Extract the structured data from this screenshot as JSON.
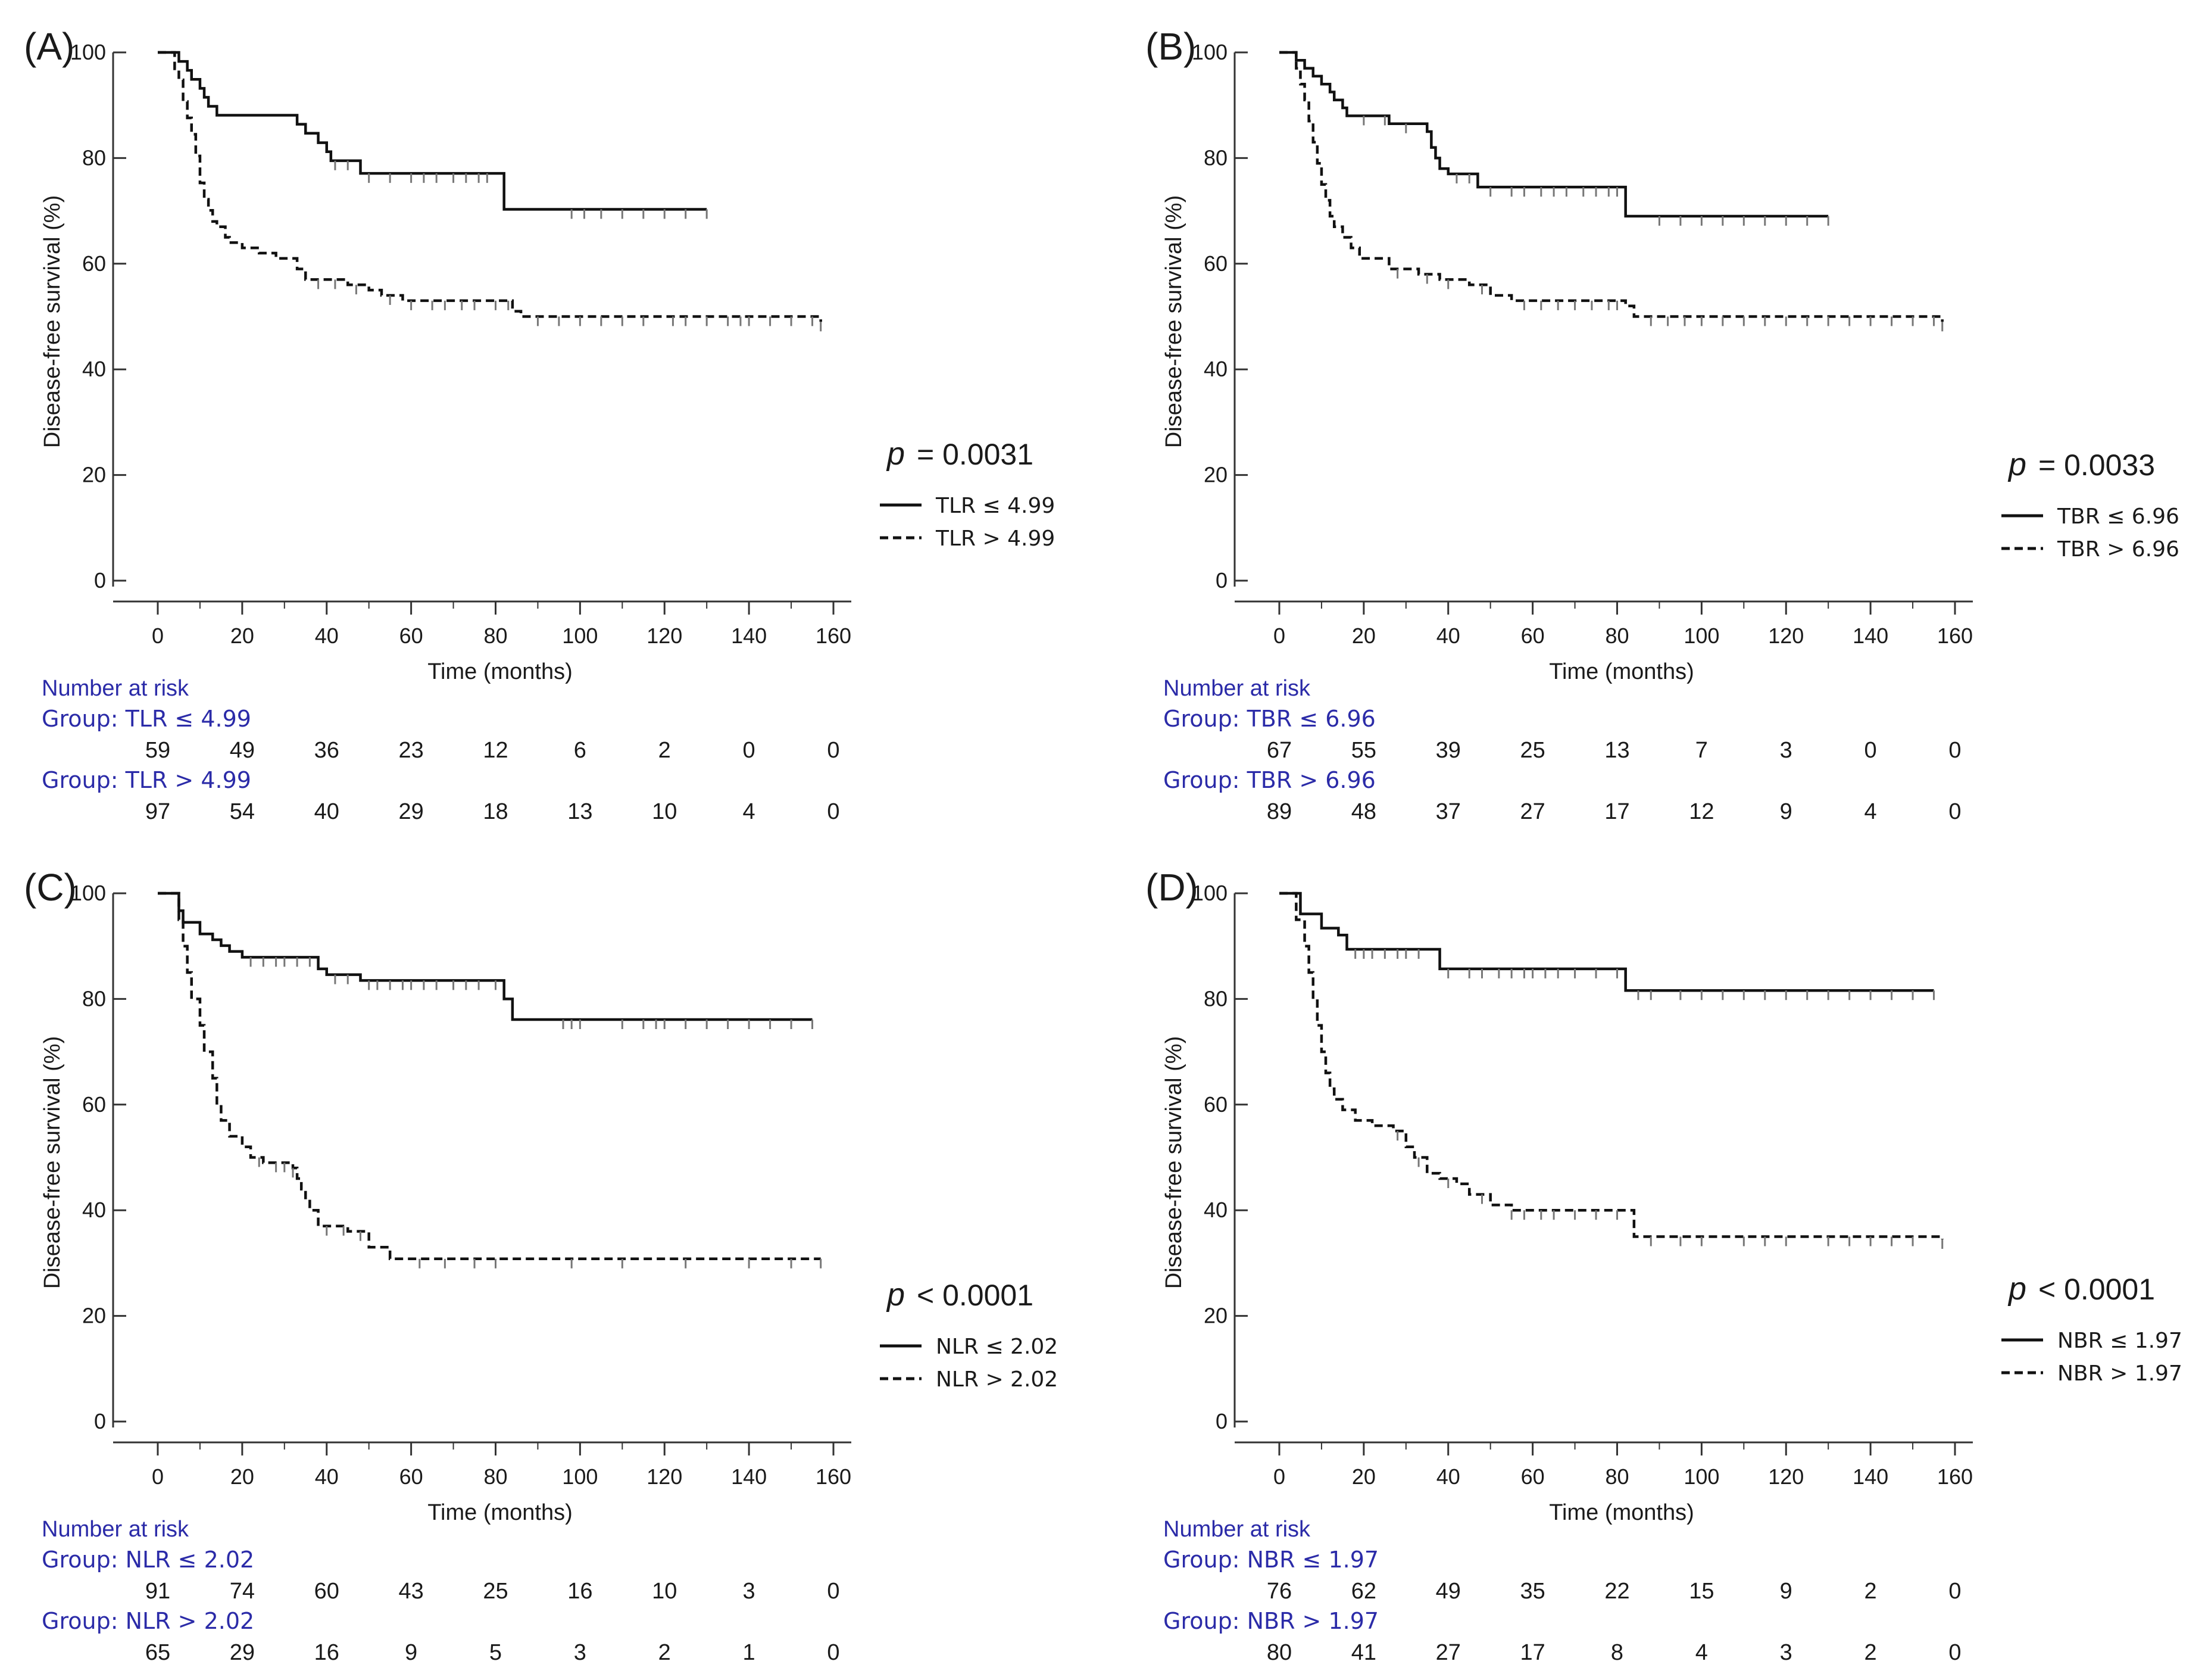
{
  "chart_data": [
    {
      "type": "line",
      "panel_label": "(A)",
      "ylabel": "Disease-free survival (%)",
      "xlabel": "Time (months)",
      "xlim": [
        0,
        160
      ],
      "ylim": [
        0,
        100
      ],
      "xticks": [
        "0",
        "20",
        "40",
        "60",
        "80",
        "100",
        "120",
        "140",
        "160"
      ],
      "yticks": [
        "0",
        "20",
        "40",
        "60",
        "80",
        "100"
      ],
      "p_symbol": "p",
      "p_text": "= 0.0031",
      "series": [
        {
          "name": "TLR ≤ 4.99",
          "style": "solid",
          "steps": [
            [
              0,
              100
            ],
            [
              5,
              98.3
            ],
            [
              7,
              96.6
            ],
            [
              8,
              94.9
            ],
            [
              10,
              93.2
            ],
            [
              11,
              91.5
            ],
            [
              12,
              89.8
            ],
            [
              14,
              88.1
            ],
            [
              33,
              86.4
            ],
            [
              35,
              84.7
            ],
            [
              38,
              82.9
            ],
            [
              40,
              81.2
            ],
            [
              41,
              79.5
            ],
            [
              48,
              77.1
            ],
            [
              82,
              70.3
            ],
            [
              130,
              70.3
            ]
          ],
          "censor": [
            42,
            45,
            50,
            55,
            60,
            63,
            66,
            70,
            73,
            76,
            78,
            98,
            101,
            105,
            110,
            115,
            120,
            125,
            130
          ]
        },
        {
          "name": "TLR > 4.99",
          "style": "dashed",
          "steps": [
            [
              0,
              100
            ],
            [
              4,
              96.9
            ],
            [
              5,
              94.8
            ],
            [
              6,
              90.7
            ],
            [
              7,
              87.6
            ],
            [
              8,
              84.5
            ],
            [
              9,
              80.4
            ],
            [
              10,
              75.3
            ],
            [
              11,
              72.2
            ],
            [
              12,
              70.1
            ],
            [
              13,
              68
            ],
            [
              14,
              67
            ],
            [
              16,
              65
            ],
            [
              17,
              64
            ],
            [
              20,
              63
            ],
            [
              24,
              62
            ],
            [
              28,
              61
            ],
            [
              33,
              59
            ],
            [
              35,
              57
            ],
            [
              45,
              56
            ],
            [
              50,
              55
            ],
            [
              53,
              54
            ],
            [
              58,
              53
            ],
            [
              84,
              51
            ],
            [
              86,
              50
            ],
            [
              157,
              49
            ]
          ],
          "censor": [
            38,
            42,
            47,
            55,
            60,
            65,
            68,
            72,
            75,
            80,
            83,
            90,
            95,
            100,
            105,
            110,
            115,
            122,
            125,
            130,
            135,
            138,
            140,
            145,
            150,
            155,
            157
          ]
        }
      ],
      "legend": [
        "TLR ≤ 4.99",
        "TLR > 4.99"
      ],
      "risk_table": {
        "title": "Number at risk",
        "groups": [
          {
            "label": "Group: TLR ≤ 4.99",
            "counts": [
              "59",
              "49",
              "36",
              "23",
              "12",
              "6",
              "2",
              "0",
              "0"
            ]
          },
          {
            "label": "Group: TLR > 4.99",
            "counts": [
              "97",
              "54",
              "40",
              "29",
              "18",
              "13",
              "10",
              "4",
              "0"
            ]
          }
        ]
      }
    },
    {
      "type": "line",
      "panel_label": "(B)",
      "ylabel": "Disease-free survival (%)",
      "xlabel": "Time (months)",
      "xlim": [
        0,
        160
      ],
      "ylim": [
        0,
        100
      ],
      "xticks": [
        "0",
        "20",
        "40",
        "60",
        "80",
        "100",
        "120",
        "140",
        "160"
      ],
      "yticks": [
        "0",
        "20",
        "40",
        "60",
        "80",
        "100"
      ],
      "p_symbol": "p",
      "p_text": "= 0.0033",
      "series": [
        {
          "name": "TBR ≤ 6.96",
          "style": "solid",
          "steps": [
            [
              0,
              100
            ],
            [
              4,
              98.5
            ],
            [
              6,
              97
            ],
            [
              8,
              95.5
            ],
            [
              10,
              94
            ],
            [
              12,
              92.5
            ],
            [
              13,
              91
            ],
            [
              15,
              89.5
            ],
            [
              16,
              88
            ],
            [
              26,
              86.5
            ],
            [
              35,
              85
            ],
            [
              36,
              82
            ],
            [
              37,
              80
            ],
            [
              38,
              78
            ],
            [
              40,
              77
            ],
            [
              47,
              74.5
            ],
            [
              82,
              69
            ],
            [
              130,
              69
            ]
          ],
          "censor": [
            20,
            25,
            30,
            42,
            45,
            50,
            55,
            58,
            62,
            65,
            68,
            72,
            75,
            78,
            80,
            90,
            95,
            100,
            105,
            110,
            115,
            120,
            125,
            130
          ]
        },
        {
          "name": "TBR > 6.96",
          "style": "dashed",
          "steps": [
            [
              0,
              100
            ],
            [
              4,
              97
            ],
            [
              5,
              94
            ],
            [
              6,
              91
            ],
            [
              7,
              87
            ],
            [
              8,
              83
            ],
            [
              9,
              79
            ],
            [
              10,
              75
            ],
            [
              11,
              72
            ],
            [
              12,
              69
            ],
            [
              13,
              67
            ],
            [
              15,
              65
            ],
            [
              17,
              63
            ],
            [
              19,
              61
            ],
            [
              26,
              59
            ],
            [
              33,
              58
            ],
            [
              38,
              57
            ],
            [
              45,
              56
            ],
            [
              50,
              54
            ],
            [
              55,
              53
            ],
            [
              82,
              52
            ],
            [
              84,
              50
            ],
            [
              157,
              49
            ]
          ],
          "censor": [
            28,
            35,
            40,
            48,
            58,
            62,
            66,
            70,
            74,
            78,
            80,
            88,
            92,
            96,
            100,
            105,
            110,
            115,
            120,
            125,
            130,
            135,
            140,
            145,
            150,
            155,
            157
          ]
        }
      ],
      "legend": [
        "TBR ≤ 6.96",
        "TBR > 6.96"
      ],
      "risk_table": {
        "title": "Number at risk",
        "groups": [
          {
            "label": "Group: TBR ≤ 6.96",
            "counts": [
              "67",
              "55",
              "39",
              "25",
              "13",
              "7",
              "3",
              "0",
              "0"
            ]
          },
          {
            "label": "Group: TBR > 6.96",
            "counts": [
              "89",
              "48",
              "37",
              "27",
              "17",
              "12",
              "9",
              "4",
              "0"
            ]
          }
        ]
      }
    },
    {
      "type": "line",
      "panel_label": "(C)",
      "ylabel": "Disease-free survival (%)",
      "xlabel": "Time (months)",
      "xlim": [
        0,
        160
      ],
      "ylim": [
        0,
        100
      ],
      "xticks": [
        "0",
        "20",
        "40",
        "60",
        "80",
        "100",
        "120",
        "140",
        "160"
      ],
      "yticks": [
        "0",
        "20",
        "40",
        "60",
        "80",
        "100"
      ],
      "p_symbol": "p",
      "p_text": "< 0.0001",
      "series": [
        {
          "name": "NLR ≤ 2.02",
          "style": "solid",
          "steps": [
            [
              0,
              100
            ],
            [
              5,
              96.7
            ],
            [
              6,
              94.5
            ],
            [
              10,
              92.3
            ],
            [
              13,
              91.2
            ],
            [
              15,
              90.1
            ],
            [
              17,
              89
            ],
            [
              20,
              87.9
            ],
            [
              38,
              85.7
            ],
            [
              40,
              84.6
            ],
            [
              48,
              83.5
            ],
            [
              82,
              80
            ],
            [
              84,
              76.1
            ],
            [
              155,
              76.1
            ]
          ],
          "censor": [
            22,
            25,
            28,
            30,
            33,
            36,
            42,
            45,
            50,
            52,
            55,
            58,
            60,
            63,
            66,
            70,
            73,
            76,
            80,
            96,
            98,
            100,
            110,
            115,
            118,
            120,
            125,
            130,
            135,
            140,
            145,
            150,
            155
          ]
        },
        {
          "name": "NLR > 2.02",
          "style": "dashed",
          "steps": [
            [
              0,
              100
            ],
            [
              5,
              95
            ],
            [
              6,
              90
            ],
            [
              7,
              85
            ],
            [
              8,
              80
            ],
            [
              10,
              75
            ],
            [
              11,
              70
            ],
            [
              13,
              65
            ],
            [
              14,
              60
            ],
            [
              15,
              57
            ],
            [
              17,
              54
            ],
            [
              20,
              52
            ],
            [
              22,
              50
            ],
            [
              25,
              49
            ],
            [
              32,
              48
            ],
            [
              33,
              46
            ],
            [
              34,
              44
            ],
            [
              35,
              42
            ],
            [
              36,
              40
            ],
            [
              38,
              37
            ],
            [
              45,
              36
            ],
            [
              50,
              33
            ],
            [
              55,
              30.8
            ],
            [
              157,
              30.8
            ]
          ],
          "censor": [
            24,
            28,
            30,
            32,
            40,
            44,
            48,
            62,
            68,
            75,
            80,
            98,
            110,
            125,
            140,
            150,
            157
          ]
        }
      ],
      "legend": [
        "NLR ≤ 2.02",
        "NLR > 2.02"
      ],
      "risk_table": {
        "title": "Number at risk",
        "groups": [
          {
            "label": "Group: NLR ≤ 2.02",
            "counts": [
              "91",
              "74",
              "60",
              "43",
              "25",
              "16",
              "10",
              "3",
              "0"
            ]
          },
          {
            "label": "Group: NLR > 2.02",
            "counts": [
              "65",
              "29",
              "16",
              "9",
              "5",
              "3",
              "2",
              "1",
              "0"
            ]
          }
        ]
      }
    },
    {
      "type": "line",
      "panel_label": "(D)",
      "ylabel": "Disease-free survival (%)",
      "xlabel": "Time (months)",
      "xlim": [
        0,
        160
      ],
      "ylim": [
        0,
        100
      ],
      "xticks": [
        "0",
        "20",
        "40",
        "60",
        "80",
        "100",
        "120",
        "140",
        "160"
      ],
      "yticks": [
        "0",
        "20",
        "40",
        "60",
        "80",
        "100"
      ],
      "p_symbol": "p",
      "p_text": "< 0.0001",
      "series": [
        {
          "name": "NBR ≤ 1.97",
          "style": "solid",
          "steps": [
            [
              0,
              100
            ],
            [
              5,
              96.1
            ],
            [
              10,
              93.4
            ],
            [
              14,
              92.1
            ],
            [
              16,
              89.4
            ],
            [
              38,
              85.7
            ],
            [
              82,
              81.6
            ],
            [
              155,
              81.6
            ]
          ],
          "censor": [
            18,
            20,
            22,
            25,
            28,
            30,
            33,
            40,
            45,
            48,
            52,
            55,
            58,
            60,
            63,
            66,
            70,
            75,
            80,
            85,
            88,
            95,
            100,
            105,
            110,
            115,
            120,
            125,
            130,
            135,
            140,
            145,
            150,
            155
          ]
        },
        {
          "name": "NBR > 1.97",
          "style": "dashed",
          "steps": [
            [
              0,
              100
            ],
            [
              4,
              95
            ],
            [
              6,
              90
            ],
            [
              7,
              85
            ],
            [
              8,
              80
            ],
            [
              9,
              75
            ],
            [
              10,
              70
            ],
            [
              11,
              66
            ],
            [
              12,
              63
            ],
            [
              13,
              61
            ],
            [
              15,
              59
            ],
            [
              18,
              57
            ],
            [
              22,
              56
            ],
            [
              27,
              55
            ],
            [
              30,
              52
            ],
            [
              32,
              50
            ],
            [
              35,
              47
            ],
            [
              38,
              46
            ],
            [
              42,
              45
            ],
            [
              45,
              43
            ],
            [
              50,
              41
            ],
            [
              55,
              40
            ],
            [
              84,
              35
            ],
            [
              157,
              34.5
            ]
          ],
          "censor": [
            28,
            33,
            40,
            48,
            55,
            58,
            62,
            65,
            70,
            75,
            80,
            88,
            95,
            100,
            110,
            115,
            120,
            130,
            135,
            140,
            145,
            150,
            157
          ]
        }
      ],
      "legend": [
        "NBR ≤ 1.97",
        "NBR > 1.97"
      ],
      "risk_table": {
        "title": "Number at risk",
        "groups": [
          {
            "label": "Group: NBR ≤ 1.97",
            "counts": [
              "76",
              "62",
              "49",
              "35",
              "22",
              "15",
              "9",
              "2",
              "0"
            ]
          },
          {
            "label": "Group: NBR > 1.97",
            "counts": [
              "80",
              "41",
              "27",
              "17",
              "8",
              "4",
              "3",
              "2",
              "0"
            ]
          }
        ]
      }
    }
  ]
}
